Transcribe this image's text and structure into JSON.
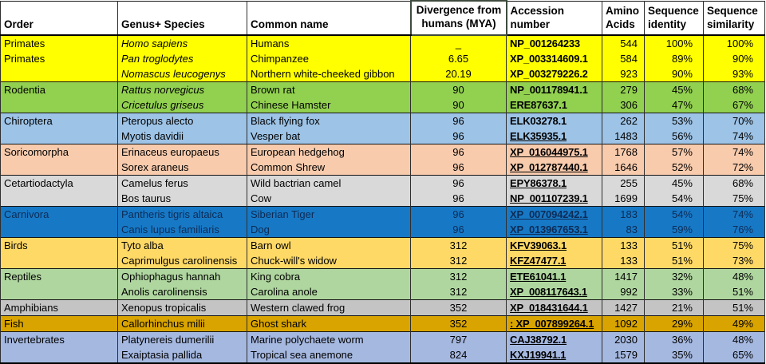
{
  "table": {
    "columns": [
      "Order",
      "Genus+ Species",
      "Common name",
      "Divergence from humans (MYA)",
      "Accession number",
      "Amino Acids",
      "Sequence identity",
      "Sequence similarity"
    ],
    "rows": [
      {
        "order": "Primates",
        "genus": "Homo sapiens",
        "genus_italic": true,
        "common": "Humans",
        "divergence": "_",
        "accession": "NP_001264233",
        "accession_link": false,
        "amino_acids": "544",
        "seq_identity": "100%",
        "seq_similarity": "100%",
        "bg": "#FFFF00",
        "fg": "#000000",
        "group_start": true
      },
      {
        "order": "Primates",
        "genus": "Pan troglodytes",
        "genus_italic": true,
        "common": "Chimpanzee",
        "divergence": "6.65",
        "accession": "XP_003314609.1",
        "accession_link": false,
        "amino_acids": "584",
        "seq_identity": "89%",
        "seq_similarity": "90%",
        "bg": "#FFFF00",
        "fg": "#000000",
        "group_start": false
      },
      {
        "order": "",
        "genus": "Nomascus leucogenys",
        "genus_italic": true,
        "common": "Northern white-cheeked gibbon",
        "divergence": "20.19",
        "accession": "XP_003279226.2",
        "accession_link": false,
        "amino_acids": "923",
        "seq_identity": "90%",
        "seq_similarity": "93%",
        "bg": "#FFFF00",
        "fg": "#000000",
        "group_start": false
      },
      {
        "order": "Rodentia",
        "genus": "Rattus norvegicus",
        "genus_italic": true,
        "common": "Brown rat",
        "divergence": "90",
        "accession": "NP_001178941.1",
        "accession_link": false,
        "amino_acids": "279",
        "seq_identity": "45%",
        "seq_similarity": "68%",
        "bg": "#92D050",
        "fg": "#000000",
        "group_start": true
      },
      {
        "order": "",
        "genus": "Cricetulus griseus",
        "genus_italic": true,
        "common": "Chinese Hamster",
        "divergence": "90",
        "accession": "ERE87637.1",
        "accession_link": false,
        "amino_acids": "306",
        "seq_identity": "47%",
        "seq_similarity": "67%",
        "bg": "#92D050",
        "fg": "#000000",
        "group_start": false
      },
      {
        "order": "Chiroptera",
        "genus": "Pteropus alecto",
        "genus_italic": false,
        "common": "Black flying fox",
        "divergence": "96",
        "accession": "ELK03278.1",
        "accession_link": false,
        "amino_acids": "262",
        "seq_identity": "53%",
        "seq_similarity": "70%",
        "bg": "#9DC3E6",
        "fg": "#000000",
        "group_start": true
      },
      {
        "order": "",
        "genus": "Myotis davidii",
        "genus_italic": false,
        "common": "Vesper bat",
        "divergence": "96",
        "accession": " ELK35935.1",
        "accession_link": true,
        "amino_acids": "1483",
        "seq_identity": "56%",
        "seq_similarity": "74%",
        "bg": "#9DC3E6",
        "fg": "#000000",
        "group_start": false
      },
      {
        "order": "Soricomorpha",
        "genus": "Erinaceus europaeus",
        "genus_italic": false,
        "common": "European hedgehog",
        "divergence": "96",
        "accession": "XP_016044975.1",
        "accession_link": true,
        "amino_acids": "1768",
        "seq_identity": "57%",
        "seq_similarity": "74%",
        "bg": "#F8CBAD",
        "fg": "#000000",
        "group_start": true
      },
      {
        "order": "",
        "genus": "Sorex araneus",
        "genus_italic": false,
        "common": "Common Shrew",
        "divergence": "96",
        "accession": "XP_012787440.1",
        "accession_link": true,
        "amino_acids": "1646",
        "seq_identity": "52%",
        "seq_similarity": "72%",
        "bg": "#F8CBAD",
        "fg": "#000000",
        "group_start": false
      },
      {
        "order": "Cetartiodactyla",
        "genus": "Camelus ferus",
        "genus_italic": false,
        "common": "Wild bactrian camel",
        "divergence": "96",
        "accession": "EPY86378.1",
        "accession_link": true,
        "amino_acids": "255",
        "seq_identity": "45%",
        "seq_similarity": "68%",
        "bg": "#D9D9D9",
        "fg": "#000000",
        "group_start": true
      },
      {
        "order": "",
        "genus": "Bos taurus",
        "genus_italic": false,
        "common": "Cow",
        "divergence": "96",
        "accession": "NP_001107239.1",
        "accession_link": true,
        "amino_acids": "1699",
        "seq_identity": "54%",
        "seq_similarity": "75%",
        "bg": "#D9D9D9",
        "fg": "#000000",
        "group_start": false
      },
      {
        "order": "Carnivora",
        "genus": "Pantheris tigris altaica",
        "genus_italic": false,
        "common": "Siberian Tiger",
        "divergence": "96",
        "accession": "XP_007094242.1",
        "accession_link": true,
        "amino_acids": "183",
        "seq_identity": "54%",
        "seq_similarity": "74%",
        "bg": "#1779C6",
        "fg": "#0d2b55",
        "group_start": true
      },
      {
        "order": "",
        "genus": "Canis lupus familiaris",
        "genus_italic": false,
        "common": "Dog",
        "divergence": "96",
        "accession": "XP_013967653.1",
        "accession_link": true,
        "amino_acids": "83",
        "seq_identity": "59%",
        "seq_similarity": "76%",
        "bg": "#1779C6",
        "fg": "#0d2b55",
        "group_start": false
      },
      {
        "order": "Birds",
        "genus": "Tyto alba",
        "genus_italic": false,
        "common": "Barn owl",
        "divergence": "312",
        "accession": "KFV39063.1",
        "accession_link": true,
        "amino_acids": "133",
        "seq_identity": "51%",
        "seq_similarity": "75%",
        "bg": "#FFD966",
        "fg": "#000000",
        "group_start": true
      },
      {
        "order": "",
        "genus": "Caprimulgus carolinensis",
        "genus_italic": false,
        "common": "Chuck-will's widow",
        "divergence": "312",
        "accession": "KFZ47477.1",
        "accession_link": true,
        "amino_acids": "133",
        "seq_identity": "51%",
        "seq_similarity": "73%",
        "bg": "#FFD966",
        "fg": "#000000",
        "group_start": false
      },
      {
        "order": "Reptiles",
        "genus": "Ophiophagus hannah",
        "genus_italic": false,
        "common": "King cobra",
        "divergence": "312",
        "accession": "ETE61041.1",
        "accession_link": true,
        "amino_acids": "1417",
        "seq_identity": "32%",
        "seq_similarity": "48%",
        "bg": "#AFD69F",
        "fg": "#000000",
        "group_start": true
      },
      {
        "order": "",
        "genus": "Anolis carolinensis",
        "genus_italic": false,
        "common": "Carolina anole",
        "divergence": "312",
        "accession": "XP_008117643.1",
        "accession_link": true,
        "amino_acids": "992",
        "seq_identity": "33%",
        "seq_similarity": "51%",
        "bg": "#AFD69F",
        "fg": "#000000",
        "group_start": false
      },
      {
        "order": "Amphibians",
        "genus": "Xenopus tropicalis",
        "genus_italic": false,
        "common": "Western clawed frog",
        "divergence": "352",
        "accession": "XP_018431644.1",
        "accession_link": true,
        "amino_acids": "1427",
        "seq_identity": "21%",
        "seq_similarity": "51%",
        "bg": "#C4C4C4",
        "fg": "#000000",
        "group_start": true
      },
      {
        "order": "Fish",
        "genus": "Callorhinchus milii",
        "genus_italic": false,
        "common": "Ghost shark",
        "divergence": "352",
        "accession": ": XP_007899264.1",
        "accession_link": true,
        "amino_acids": "1092",
        "seq_identity": "29%",
        "seq_similarity": "49%",
        "bg": "#D9A400",
        "fg": "#000000",
        "group_start": true
      },
      {
        "order": "Invertebrates",
        "genus": "Platynereis dumerilii",
        "genus_italic": false,
        "common": "Marine polychaete worm",
        "divergence": "797",
        "accession": "CAJ38792.1",
        "accession_link": true,
        "amino_acids": "2030",
        "seq_identity": "36%",
        "seq_similarity": "48%",
        "bg": "#A5B8E0",
        "fg": "#000000",
        "group_start": true
      },
      {
        "order": "",
        "genus": "Exaiptasia pallida",
        "genus_italic": false,
        "common": "Tropical sea anemone",
        "divergence": "824",
        "accession": "KXJ19941.1",
        "accession_link": true,
        "amino_acids": "1579",
        "seq_identity": "35%",
        "seq_similarity": "65%",
        "bg": "#A5B8E0",
        "fg": "#000000",
        "group_start": false
      }
    ]
  }
}
